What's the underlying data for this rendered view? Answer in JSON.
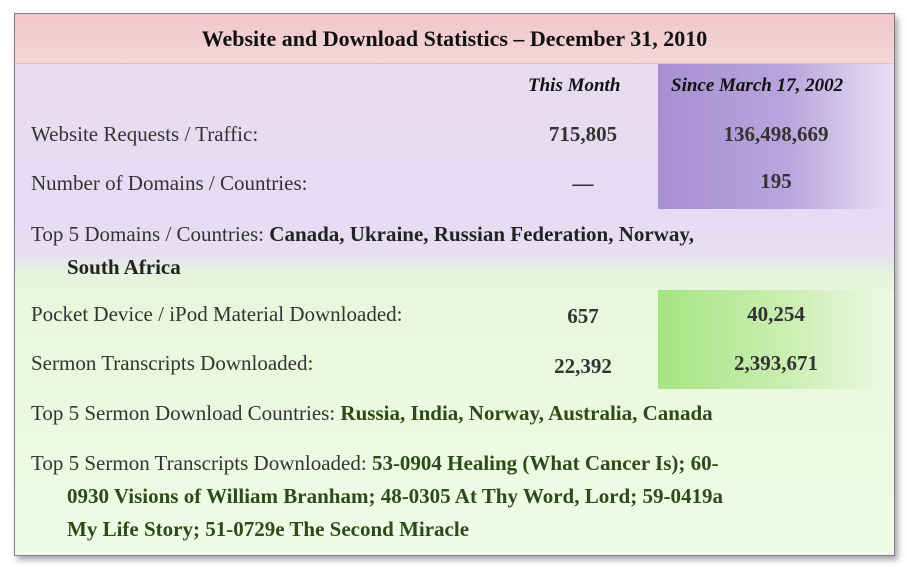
{
  "title": "Website and Download Statistics – December 31, 2010",
  "headers": {
    "this_month": "This Month",
    "since": "Since March 17, 2002"
  },
  "rows": [
    {
      "label": "Website Requests / Traffic:",
      "month": "715,805",
      "since": "136,498,669"
    },
    {
      "label": "Number of Domains / Countries:",
      "month": "—",
      "since": "195"
    },
    {
      "label": "Pocket Device / iPod  Material  Downloaded:",
      "month": "657",
      "since": "40,254"
    },
    {
      "label": "Sermon Transcripts Downloaded:",
      "month": "22,392",
      "since": "2,393,671"
    }
  ],
  "top_domains": {
    "label": "Top 5 Domains / Countries:",
    "line1": "Canada,  Ukraine, Russian Federation,  Norway,",
    "line2": "South Africa"
  },
  "top_sermon_countries": {
    "label": "Top 5 Sermon Download Countries:",
    "value": "Russia, India, Norway, Australia, Canada"
  },
  "top_transcripts": {
    "label": "Top 5 Sermon Transcripts Downloaded:",
    "line1": "53-0904 Healing (What Cancer Is); 60-",
    "line2": "0930 Visions of William Branham; 48-0305 At Thy Word, Lord; 59-0419a",
    "line3": "My Life Story; 51-0729e The Second Miracle"
  }
}
